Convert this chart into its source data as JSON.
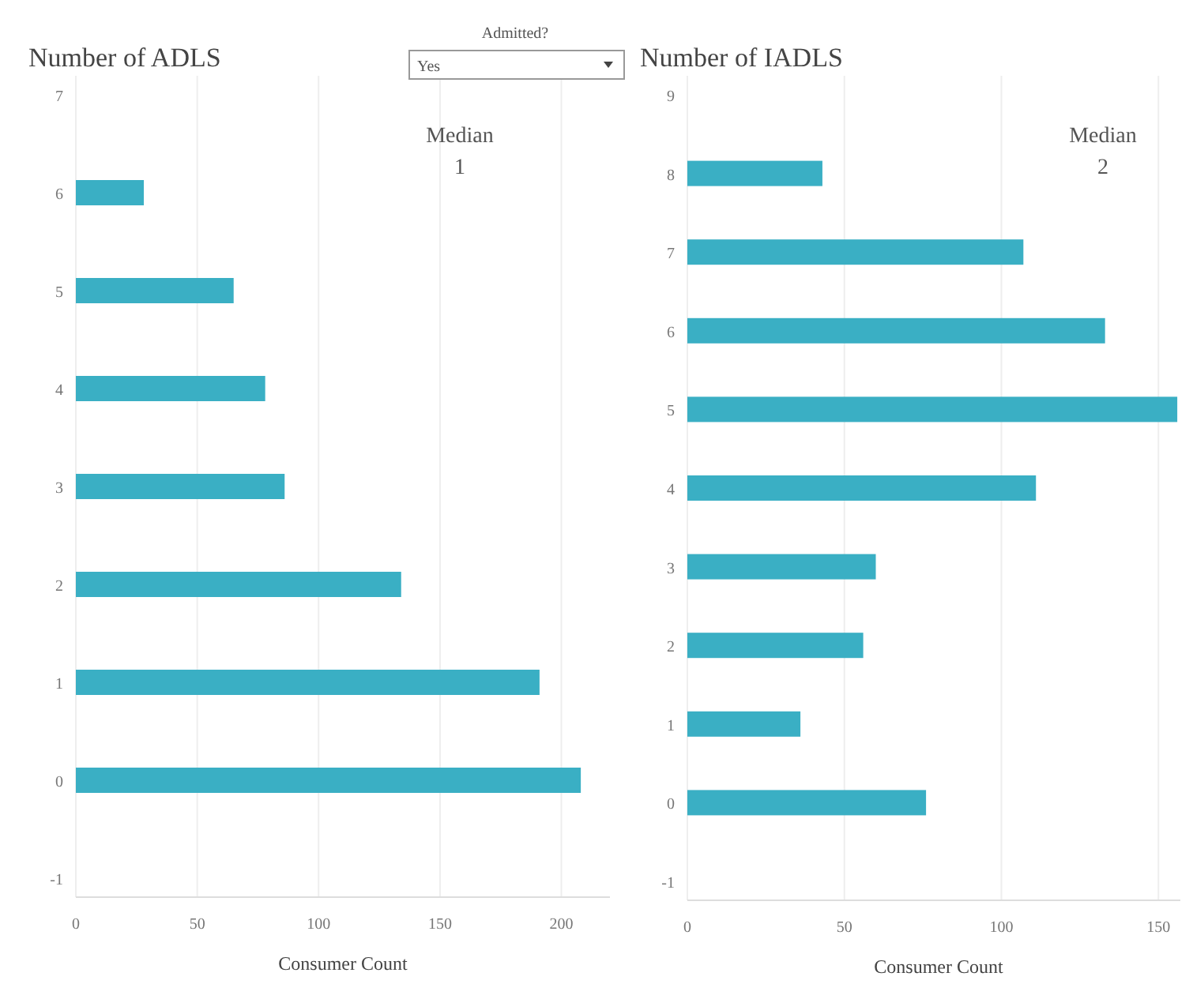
{
  "chart_data": [
    {
      "type": "bar",
      "orientation": "horizontal",
      "title": "Number of ADLS",
      "xlabel": "Consumer Count",
      "categories": [
        "7",
        "6",
        "5",
        "4",
        "3",
        "2",
        "1",
        "0",
        "-1"
      ],
      "values": [
        null,
        28,
        65,
        78,
        86,
        134,
        191,
        208,
        null
      ],
      "color": "#3aafc4",
      "xlim": [
        0,
        220
      ],
      "xticks": [
        0,
        50,
        100,
        150,
        200
      ],
      "grid": "x",
      "annotations": [
        "Admitted?",
        "Yes",
        "Median",
        "1"
      ]
    },
    {
      "type": "bar",
      "orientation": "horizontal",
      "title": "Number of IADLS",
      "xlabel": "Consumer Count",
      "categories": [
        "9",
        "8",
        "7",
        "6",
        "5",
        "4",
        "3",
        "2",
        "1",
        "0",
        "-1"
      ],
      "values": [
        null,
        43,
        107,
        133,
        156,
        111,
        60,
        56,
        36,
        76,
        null
      ],
      "color": "#3aafc4",
      "xlim": [
        0,
        160
      ],
      "xticks": [
        0,
        50,
        100,
        150
      ],
      "grid": "x",
      "annotations": [
        "Median",
        "2"
      ]
    }
  ]
}
